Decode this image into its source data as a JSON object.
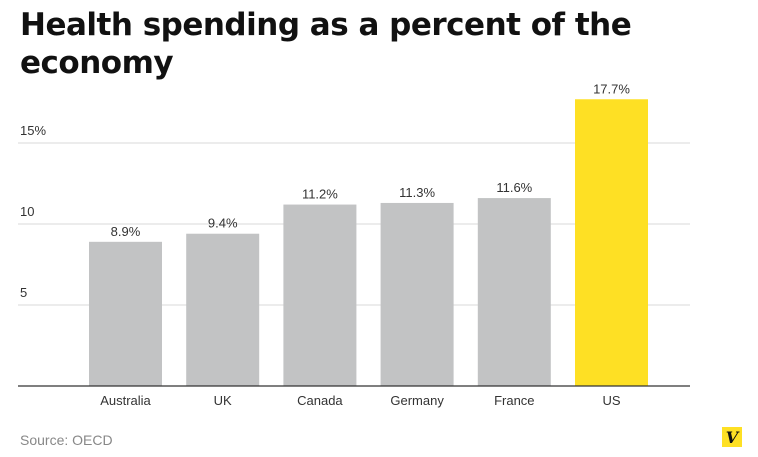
{
  "title": "Health spending as a percent of the economy",
  "source": "Source: OECD",
  "logo_text": "V",
  "colors": {
    "bar_default": "#c2c3c4",
    "bar_highlight": "#fee024",
    "grid": "#d9d9d9",
    "axis": "#333333",
    "text": "#333333",
    "logo": "#fee024"
  },
  "chart_data": {
    "type": "bar",
    "title": "Health spending as a percent of the economy",
    "xlabel": "",
    "ylabel": "",
    "categories": [
      "Australia",
      "UK",
      "Canada",
      "Germany",
      "France",
      "US"
    ],
    "values": [
      8.9,
      9.4,
      11.2,
      11.3,
      11.6,
      17.7
    ],
    "data_labels": [
      "8.9%",
      "9.4%",
      "11.2%",
      "11.3%",
      "11.6%",
      "17.7%"
    ],
    "highlight": "US",
    "yticks": [
      5,
      10,
      15
    ],
    "ytick_labels": [
      "5",
      "10",
      "15%"
    ],
    "ylim": [
      0,
      20
    ],
    "grid": true
  }
}
